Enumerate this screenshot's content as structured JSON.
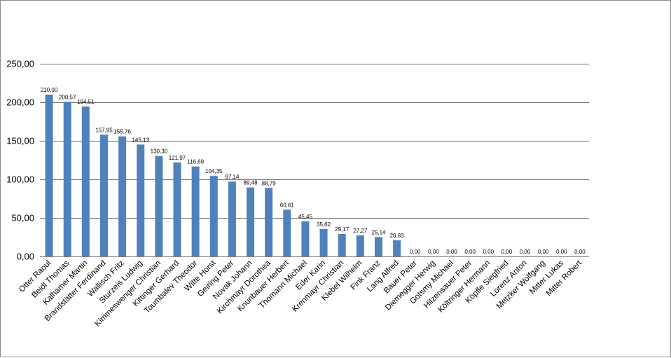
{
  "chart_data": {
    "type": "bar",
    "title": "",
    "xlabel": "",
    "ylabel": "",
    "ylim": [
      0,
      250
    ],
    "yticks": [
      "0,00",
      "50,00",
      "100,00",
      "150,00",
      "200,00",
      "250,00"
    ],
    "ytick_values": [
      0,
      50,
      100,
      150,
      200,
      250
    ],
    "grid": true,
    "legend": "none",
    "bar_color": "#4f81bd",
    "categories": [
      "Otter Raoul",
      "Beidl Thomas",
      "Kalhamer Martin",
      "Brandstätter Ferdinand",
      "Wallisch Fritz",
      "Sturzeis Ludwig",
      "Kimmeswenger Christian",
      "Kittinger Gerhard",
      "Toumbalev Theodor",
      "Witte Horst",
      "Geiring Peter",
      "Novak Johann",
      "Kirchmayr Dorothea",
      "Knunbauer Herbert",
      "Thomann Michael",
      "Eder Karin",
      "Krenmayr Christian",
      "Klebel Wilhelm",
      "Fink Franz",
      "Lang Alfred",
      "Bauer Peter",
      "Diemegger Herwig",
      "Gotsmy Michael",
      "Hilzensauer Peter",
      "Költringer Hermann",
      "Köpfle Siegfried",
      "Lorenz Anton",
      "Metzker Wolfgang",
      "Mitter Lukas",
      "Mitter Robert"
    ],
    "values": [
      210.0,
      200.57,
      194.51,
      157.95,
      155.76,
      145.13,
      130.3,
      121.97,
      116.69,
      104.35,
      97.14,
      89.48,
      88.79,
      60.61,
      45.45,
      35.62,
      29.17,
      27.27,
      25.14,
      20.83,
      0,
      0,
      0,
      0,
      0,
      0,
      0,
      0,
      0,
      0
    ],
    "data_labels": [
      "210,00",
      "200,57",
      "194,51",
      "157,95",
      "155,76",
      "145,13",
      "130,30",
      "121,97",
      "116,69",
      "104,35",
      "97,14",
      "89,48",
      "88,79",
      "60,61",
      "45,45",
      "35,62",
      "29,17",
      "27,27",
      "25,14",
      "20,83",
      "0,00",
      "0,00",
      "0,00",
      "0,00",
      "0,00",
      "0,00",
      "0,00",
      "0,00",
      "0,00",
      "0,00"
    ]
  }
}
